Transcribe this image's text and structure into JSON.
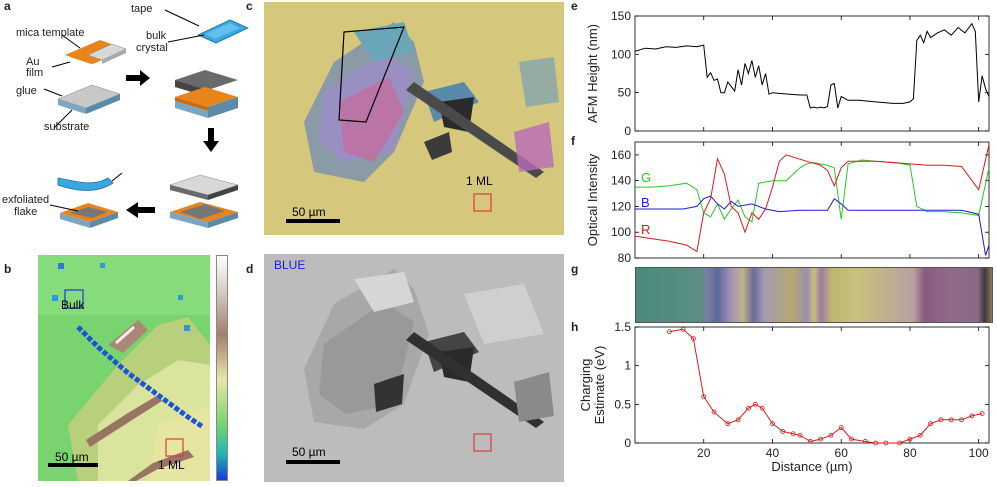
{
  "panels": {
    "a": {
      "label": "a",
      "texts": {
        "mica": "mica template",
        "au": "Au",
        "film": "film",
        "glue": "glue",
        "substrate": "substrate",
        "tape": "tape",
        "bulk": "bulk",
        "crystal": "crystal",
        "exfoliated": "exfoliated",
        "flake": "flake"
      },
      "colors": {
        "gold": "#e8841c",
        "mica": "#d8d8d8",
        "substrate": "#7aa6c2",
        "tape": "#3aa8e0",
        "crystal": "#6a6a6a"
      }
    },
    "b": {
      "label": "b",
      "bulk_label": "Bulk",
      "ml_label": "1 ML",
      "scale_label": "50 µm"
    },
    "c": {
      "label": "c",
      "ml_label": "1 ML",
      "scale_label": "50 µm"
    },
    "d": {
      "label": "d",
      "channel_label": "BLUE",
      "scale_label": "50 µm"
    },
    "e": {
      "label": "e"
    },
    "f": {
      "label": "f"
    },
    "g": {
      "label": "g"
    },
    "h": {
      "label": "h"
    }
  },
  "chart_data": [
    {
      "type": "line",
      "panel": "e",
      "ylabel": "AFM Height (nm)",
      "xlim": [
        0,
        103
      ],
      "ylim": [
        0,
        150
      ],
      "yticks": [
        0,
        50,
        100,
        150
      ],
      "series": [
        {
          "color": "#000000",
          "x": [
            0,
            3,
            6,
            9,
            12,
            15,
            18,
            20,
            21,
            22,
            23,
            24,
            25,
            26,
            27,
            28,
            29,
            30,
            31,
            32,
            33,
            34,
            35,
            36,
            37,
            38,
            39,
            40,
            42,
            45,
            48,
            50,
            51,
            52,
            53,
            54,
            55,
            56,
            57,
            58,
            59,
            60,
            62,
            65,
            70,
            75,
            78,
            80,
            81,
            82,
            83,
            84,
            85,
            86,
            88,
            90,
            92,
            94,
            96,
            98,
            99,
            100,
            101,
            102,
            103
          ],
          "y": [
            104,
            108,
            107,
            110,
            109,
            111,
            110,
            112,
            70,
            76,
            66,
            68,
            50,
            50,
            64,
            58,
            52,
            80,
            60,
            88,
            75,
            92,
            70,
            85,
            60,
            75,
            48,
            50,
            49,
            48,
            47,
            47,
            30,
            31,
            30,
            31,
            30,
            32,
            60,
            62,
            30,
            45,
            40,
            40,
            38,
            36,
            36,
            38,
            42,
            118,
            125,
            115,
            130,
            122,
            128,
            132,
            125,
            135,
            128,
            140,
            130,
            38,
            72,
            55,
            45
          ]
        }
      ]
    },
    {
      "type": "line",
      "panel": "f",
      "ylabel": "Optical Intensity",
      "xlim": [
        0,
        103
      ],
      "ylim": [
        80,
        170
      ],
      "yticks": [
        80,
        100,
        120,
        140,
        160
      ],
      "series": [
        {
          "name": "G",
          "color": "#27c927",
          "x": [
            0,
            5,
            10,
            15,
            18,
            20,
            22,
            24,
            26,
            28,
            30,
            32,
            34,
            36,
            40,
            44,
            48,
            50,
            52,
            56,
            58,
            60,
            62,
            66,
            70,
            76,
            80,
            82,
            85,
            90,
            95,
            100,
            103
          ],
          "y": [
            135,
            135,
            136,
            138,
            133,
            115,
            112,
            122,
            110,
            118,
            125,
            112,
            108,
            138,
            140,
            140,
            150,
            153,
            154,
            152,
            150,
            110,
            153,
            156,
            155,
            154,
            152,
            120,
            116,
            116,
            115,
            113,
            150
          ]
        },
        {
          "name": "B",
          "color": "#1a1adc",
          "x": [
            0,
            5,
            10,
            14,
            18,
            20,
            22,
            24,
            26,
            28,
            30,
            34,
            38,
            42,
            48,
            52,
            56,
            58,
            60,
            62,
            68,
            76,
            80,
            85,
            90,
            95,
            100,
            102,
            103
          ],
          "y": [
            118,
            118,
            118,
            118,
            120,
            126,
            128,
            122,
            118,
            124,
            120,
            122,
            118,
            116,
            117,
            117,
            117,
            126,
            122,
            117,
            117,
            117,
            117,
            117,
            117,
            117,
            114,
            82,
            90
          ]
        },
        {
          "name": "R",
          "color": "#dd1a1a",
          "x": [
            0,
            5,
            10,
            15,
            18,
            20,
            22,
            24,
            26,
            28,
            30,
            32,
            34,
            36,
            38,
            40,
            42,
            44,
            50,
            54,
            56,
            58,
            60,
            62,
            70,
            80,
            85,
            90,
            95,
            100,
            103
          ],
          "y": [
            97,
            95,
            93,
            90,
            85,
            115,
            126,
            157,
            145,
            120,
            115,
            100,
            115,
            110,
            118,
            135,
            155,
            160,
            155,
            152,
            148,
            136,
            150,
            155,
            155,
            153,
            152,
            152,
            151,
            133,
            168
          ]
        }
      ]
    },
    {
      "type": "line",
      "panel": "h",
      "ylabel_lines": [
        "Charging",
        "Estimate (eV)"
      ],
      "xlabel": "Distance (µm)",
      "xlim": [
        0,
        103
      ],
      "ylim": [
        0,
        1.5
      ],
      "xticks": [
        20,
        40,
        60,
        80,
        100
      ],
      "yticks": [
        0,
        0.5,
        1,
        1.5
      ],
      "ytick_labels": [
        "0",
        "0.5",
        "1",
        "1.5"
      ],
      "series": [
        {
          "color": "#dd1a1a",
          "x": [
            10,
            14,
            17,
            20,
            23,
            27,
            30,
            33,
            35,
            37,
            40,
            43,
            46,
            48,
            51,
            54,
            57,
            60,
            63,
            67,
            70,
            73,
            77,
            80,
            83,
            86,
            89,
            92,
            95,
            98,
            101
          ],
          "y": [
            1.44,
            1.47,
            1.35,
            0.6,
            0.4,
            0.25,
            0.3,
            0.45,
            0.5,
            0.45,
            0.25,
            0.15,
            0.12,
            0.1,
            0.02,
            0.05,
            0.1,
            0.2,
            0.05,
            0.02,
            0.0,
            0.0,
            0.0,
            0.05,
            0.1,
            0.25,
            0.3,
            0.3,
            0.3,
            0.35,
            0.38
          ]
        }
      ]
    }
  ]
}
